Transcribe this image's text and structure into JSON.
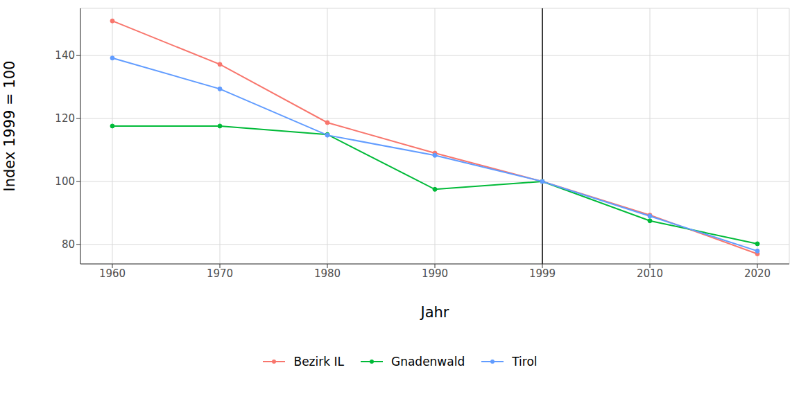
{
  "chart_data": {
    "type": "line",
    "x_label": "Jahr",
    "y_label": "Index 1999 = 100",
    "categories": [
      "1960",
      "1970",
      "1980",
      "1990",
      "1999",
      "2010",
      "2020"
    ],
    "series": [
      {
        "name": "Bezirk IL",
        "color": "#F8766D",
        "values": [
          151,
          137.2,
          118.7,
          109,
          100,
          89.3,
          77
        ],
        "marker": "circle"
      },
      {
        "name": "Gnadenwald",
        "color": "#00BA38",
        "values": [
          117.6,
          117.6,
          114.9,
          97.5,
          100,
          87.5,
          80.2
        ],
        "marker": "circle"
      },
      {
        "name": "Tirol",
        "color": "#619CFF",
        "values": [
          139.2,
          129.4,
          114.7,
          108.3,
          100,
          89,
          77.9
        ],
        "marker": "circle"
      }
    ],
    "ylim": [
      73.8,
      155
    ],
    "yticks": [
      80,
      100,
      120,
      140
    ],
    "grid": true,
    "reference_line": {
      "x": "1999",
      "color": "#000000"
    },
    "legend": "bottom"
  }
}
